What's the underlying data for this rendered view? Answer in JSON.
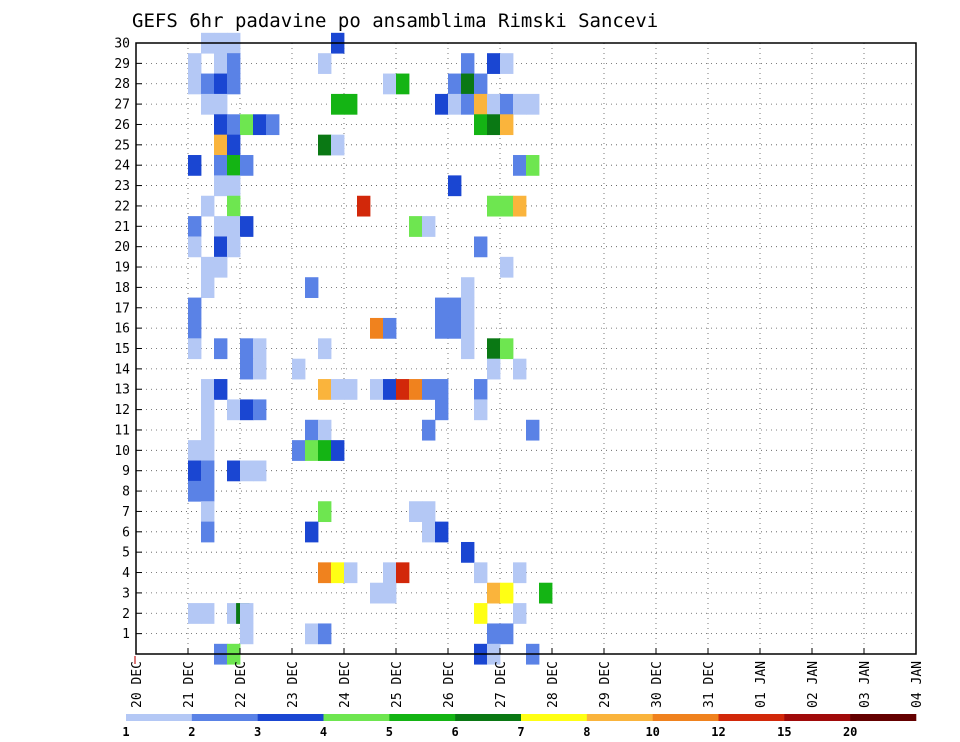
{
  "chart_data": {
    "type": "heatmap",
    "title": "GEFS 6hr padavine po ansamblima Rimski Sancevi",
    "xlabel": "",
    "ylabel": "",
    "y_ticks": [
      1,
      2,
      3,
      4,
      5,
      6,
      7,
      8,
      9,
      10,
      11,
      12,
      13,
      14,
      15,
      16,
      17,
      18,
      19,
      20,
      21,
      22,
      23,
      24,
      25,
      26,
      27,
      28,
      29,
      30
    ],
    "ylim": [
      0,
      30
    ],
    "x_ticks": [
      "20 DEC",
      "21 DEC",
      "22 DEC",
      "23 DEC",
      "24 DEC",
      "25 DEC",
      "26 DEC",
      "27 DEC",
      "28 DEC",
      "29 DEC",
      "30 DEC",
      "31 DEC",
      "01 JAN",
      "02 JAN",
      "03 JAN",
      "04 JAN"
    ],
    "x_unit": "6-hour step from 20 DEC 00Z",
    "xlim": [
      0,
      60
    ],
    "grid": true,
    "colorbar": {
      "labels": [
        "1",
        "2",
        "3",
        "4",
        "5",
        "6",
        "7",
        "8",
        "10",
        "12",
        "15",
        "20"
      ],
      "colors": [
        "#b4c8f5",
        "#5a82e6",
        "#1a46d2",
        "#6ee650",
        "#14b414",
        "#0a7814",
        "#ffff14",
        "#fab43c",
        "#f0821e",
        "#d2280a",
        "#a00a0a",
        "#640000"
      ]
    },
    "cells": [
      {
        "m": 30,
        "s": [
          [
            5,
            0
          ],
          [
            6,
            0
          ],
          [
            7,
            0
          ],
          [
            15,
            2
          ]
        ]
      },
      {
        "m": 29,
        "s": [
          [
            4,
            0
          ],
          [
            6,
            0
          ],
          [
            7,
            1
          ],
          [
            14,
            0
          ],
          [
            25,
            1
          ],
          [
            27,
            2
          ],
          [
            28,
            0
          ]
        ]
      },
      {
        "m": 28,
        "s": [
          [
            4,
            0
          ],
          [
            5,
            1
          ],
          [
            6,
            2
          ],
          [
            7,
            1
          ],
          [
            19,
            0
          ],
          [
            20,
            4
          ],
          [
            24,
            1
          ],
          [
            25,
            5
          ],
          [
            26,
            1
          ]
        ]
      },
      {
        "m": 27,
        "s": [
          [
            5,
            0
          ],
          [
            6,
            0
          ],
          [
            15,
            4
          ],
          [
            16,
            4
          ],
          [
            23,
            2
          ],
          [
            24,
            0
          ],
          [
            25,
            1
          ],
          [
            26,
            7
          ],
          [
            27,
            0
          ],
          [
            28,
            1
          ],
          [
            29,
            0
          ],
          [
            30,
            0
          ]
        ]
      },
      {
        "m": 26,
        "s": [
          [
            6,
            2
          ],
          [
            7,
            1
          ],
          [
            8,
            3
          ],
          [
            9,
            2
          ],
          [
            10,
            1
          ],
          [
            26,
            4
          ],
          [
            27,
            5
          ],
          [
            28,
            7
          ]
        ]
      },
      {
        "m": 25,
        "s": [
          [
            6,
            7
          ],
          [
            7,
            2
          ],
          [
            14,
            5
          ],
          [
            15,
            0
          ]
        ]
      },
      {
        "m": 24,
        "s": [
          [
            4,
            2
          ],
          [
            6,
            1
          ],
          [
            7,
            4
          ],
          [
            8,
            1
          ],
          [
            29,
            1
          ],
          [
            30,
            3
          ]
        ]
      },
      {
        "m": 23,
        "s": [
          [
            6,
            0
          ],
          [
            7,
            0
          ],
          [
            24,
            2
          ]
        ]
      },
      {
        "m": 22,
        "s": [
          [
            5,
            0
          ],
          [
            7,
            3
          ],
          [
            17,
            9
          ],
          [
            27,
            3
          ],
          [
            28,
            3
          ],
          [
            29,
            7
          ]
        ]
      },
      {
        "m": 21,
        "s": [
          [
            4,
            1
          ],
          [
            6,
            0
          ],
          [
            7,
            0
          ],
          [
            8,
            2
          ],
          [
            21,
            3
          ],
          [
            22,
            0
          ]
        ]
      },
      {
        "m": 20,
        "s": [
          [
            4,
            0
          ],
          [
            6,
            2
          ],
          [
            7,
            0
          ],
          [
            26,
            1
          ]
        ]
      },
      {
        "m": 19,
        "s": [
          [
            5,
            0
          ],
          [
            6,
            0
          ],
          [
            28,
            0
          ]
        ]
      },
      {
        "m": 18,
        "s": [
          [
            5,
            0
          ],
          [
            13,
            1
          ],
          [
            25,
            0
          ]
        ]
      },
      {
        "m": 17,
        "s": [
          [
            4,
            1
          ],
          [
            23,
            1
          ],
          [
            24,
            1
          ],
          [
            25,
            0
          ]
        ]
      },
      {
        "m": 16,
        "s": [
          [
            4,
            1
          ],
          [
            18,
            8
          ],
          [
            19,
            1
          ],
          [
            23,
            1
          ],
          [
            24,
            1
          ],
          [
            25,
            0
          ]
        ]
      },
      {
        "m": 15,
        "s": [
          [
            4,
            0
          ],
          [
            6,
            1
          ],
          [
            8,
            1
          ],
          [
            9,
            0
          ],
          [
            14,
            0
          ],
          [
            25,
            0
          ],
          [
            27,
            5
          ],
          [
            28,
            3
          ]
        ]
      },
      {
        "m": 14,
        "s": [
          [
            8,
            1
          ],
          [
            9,
            0
          ],
          [
            12,
            0
          ],
          [
            27,
            0
          ],
          [
            29,
            0
          ]
        ]
      },
      {
        "m": 13,
        "s": [
          [
            5,
            0
          ],
          [
            6,
            2
          ],
          [
            14,
            7
          ],
          [
            15,
            0
          ],
          [
            16,
            0
          ],
          [
            18,
            0
          ],
          [
            19,
            2
          ],
          [
            20,
            9
          ],
          [
            21,
            8
          ],
          [
            22,
            1
          ],
          [
            23,
            1
          ],
          [
            26,
            1
          ]
        ]
      },
      {
        "m": 12,
        "s": [
          [
            5,
            0
          ],
          [
            7,
            0
          ],
          [
            8,
            2
          ],
          [
            9,
            1
          ],
          [
            23,
            1
          ],
          [
            26,
            0
          ]
        ]
      },
      {
        "m": 11,
        "s": [
          [
            5,
            0
          ],
          [
            13,
            1
          ],
          [
            14,
            0
          ],
          [
            22,
            1
          ],
          [
            30,
            1
          ]
        ]
      },
      {
        "m": 10,
        "s": [
          [
            4,
            0
          ],
          [
            5,
            0
          ],
          [
            12,
            1
          ],
          [
            13,
            3
          ],
          [
            14,
            4
          ],
          [
            15,
            2
          ]
        ]
      },
      {
        "m": 9,
        "s": [
          [
            4,
            2
          ],
          [
            5,
            1
          ],
          [
            7,
            2
          ],
          [
            8,
            0
          ],
          [
            9,
            0
          ]
        ]
      },
      {
        "m": 8,
        "s": [
          [
            4,
            1
          ],
          [
            5,
            1
          ]
        ]
      },
      {
        "m": 7,
        "s": [
          [
            5,
            0
          ],
          [
            14,
            3
          ],
          [
            21,
            0
          ],
          [
            22,
            0
          ]
        ]
      },
      {
        "m": 6,
        "s": [
          [
            5,
            1
          ],
          [
            13,
            2
          ],
          [
            22,
            0
          ],
          [
            23,
            2
          ]
        ]
      },
      {
        "m": 5,
        "s": [
          [
            25,
            2
          ]
        ]
      },
      {
        "m": 4,
        "s": [
          [
            14,
            8
          ],
          [
            15,
            6
          ],
          [
            16,
            0
          ],
          [
            19,
            0
          ],
          [
            20,
            9
          ],
          [
            26,
            0
          ],
          [
            29,
            0
          ]
        ]
      },
      {
        "m": 3,
        "s": [
          [
            18,
            0
          ],
          [
            19,
            0
          ],
          [
            27,
            7
          ],
          [
            28,
            6
          ],
          [
            31,
            4
          ]
        ]
      },
      {
        "m": 2,
        "s": [
          [
            4,
            0
          ],
          [
            5,
            0
          ],
          [
            7,
            0
          ],
          [
            7.7,
            5
          ],
          [
            8,
            0
          ],
          [
            26,
            6
          ],
          [
            29,
            0
          ]
        ]
      },
      {
        "m": 1,
        "s": [
          [
            8,
            0
          ],
          [
            13,
            0
          ],
          [
            14,
            1
          ],
          [
            27,
            1
          ],
          [
            28,
            1
          ]
        ]
      },
      {
        "m": 0,
        "s": [
          [
            6,
            1
          ],
          [
            7,
            3
          ],
          [
            26,
            2
          ],
          [
            27,
            0
          ],
          [
            30,
            1
          ]
        ]
      }
    ]
  }
}
